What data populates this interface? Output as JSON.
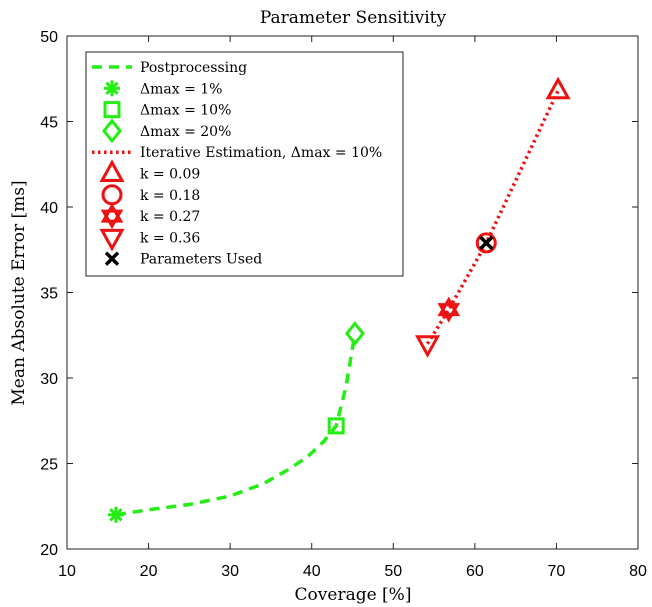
{
  "chart_data": {
    "type": "line",
    "title": "Parameter Sensitivity",
    "xlabel": "Coverage [%]",
    "ylabel": "Mean Absolute Error [ms]",
    "xlim": [
      10,
      80
    ],
    "ylim": [
      20,
      50
    ],
    "xticks": [
      "10",
      "20",
      "30",
      "40",
      "50",
      "60",
      "70",
      "80"
    ],
    "yticks": [
      "20",
      "25",
      "30",
      "35",
      "40",
      "45",
      "50"
    ],
    "grid": false,
    "legend_position": "top-left",
    "colors": {
      "postprocessing": "#22ee11",
      "iterative": "#ee1111",
      "used": "#000000"
    },
    "series": [
      {
        "name": "Postprocessing",
        "style": "dashed",
        "color": "#22ee11",
        "x": [
          16,
          20,
          25,
          30,
          34,
          37,
          39.5,
          41.5,
          43,
          44.2,
          45.3
        ],
        "y": [
          22.0,
          22.3,
          22.6,
          23.1,
          23.8,
          24.6,
          25.4,
          26.3,
          27.2,
          29.5,
          32.6
        ]
      },
      {
        "name": "Iterative Estimation, Δmax = 10%",
        "style": "dotted",
        "color": "#ee1111",
        "x": [
          54.2,
          56.8,
          61.4,
          70.2
        ],
        "y": [
          32.0,
          34.0,
          37.9,
          46.8
        ]
      }
    ],
    "points": [
      {
        "label": "Δmax = 1%",
        "marker": "asterisk",
        "color": "#22ee11",
        "x": 16,
        "y": 22.0
      },
      {
        "label": "Δmax = 10%",
        "marker": "square",
        "color": "#22ee11",
        "x": 43,
        "y": 27.2
      },
      {
        "label": "Δmax = 20%",
        "marker": "diamond",
        "color": "#22ee11",
        "x": 45.3,
        "y": 32.6
      },
      {
        "label": "k = 0.09",
        "marker": "triangle-up",
        "color": "#ee1111",
        "x": 70.2,
        "y": 46.8
      },
      {
        "label": "k = 0.18",
        "marker": "circle",
        "color": "#ee1111",
        "x": 61.4,
        "y": 37.9
      },
      {
        "label": "k = 0.27",
        "marker": "hexagram",
        "color": "#ee1111",
        "x": 56.8,
        "y": 34.0
      },
      {
        "label": "k = 0.36",
        "marker": "triangle-down",
        "color": "#ee1111",
        "x": 54.2,
        "y": 32.0
      },
      {
        "label": "Parameters Used",
        "marker": "x",
        "color": "#000000",
        "x": 61.4,
        "y": 37.9
      }
    ],
    "legend": [
      {
        "sym": "dash",
        "color": "#22ee11",
        "label": "Postprocessing"
      },
      {
        "sym": "asterisk",
        "color": "#22ee11",
        "label": "Δmax = 1%"
      },
      {
        "sym": "square",
        "color": "#22ee11",
        "label": "Δmax = 10%"
      },
      {
        "sym": "diamond",
        "color": "#22ee11",
        "label": "Δmax = 20%"
      },
      {
        "sym": "dot",
        "color": "#ee1111",
        "label": "Iterative Estimation, Δmax = 10%"
      },
      {
        "sym": "triangle-up",
        "color": "#ee1111",
        "label": "k = 0.09"
      },
      {
        "sym": "circle",
        "color": "#ee1111",
        "label": "k = 0.18"
      },
      {
        "sym": "hexagram",
        "color": "#ee1111",
        "label": "k = 0.27"
      },
      {
        "sym": "triangle-down",
        "color": "#ee1111",
        "label": "k = 0.36"
      },
      {
        "sym": "x",
        "color": "#000000",
        "label": "Parameters Used"
      }
    ]
  }
}
